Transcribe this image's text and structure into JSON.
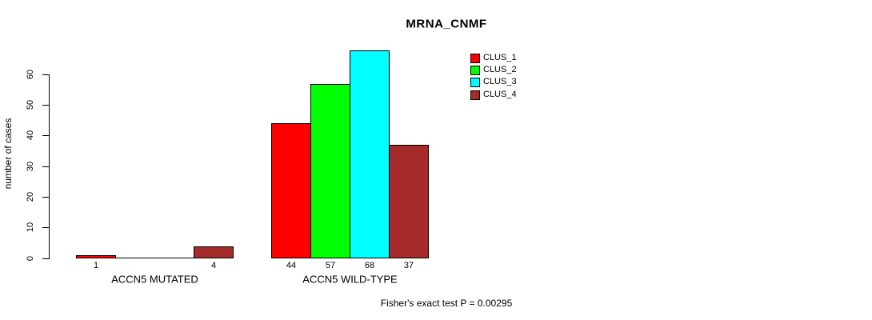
{
  "chart_data": {
    "type": "bar",
    "title": "MRNA_CNMF",
    "xlabel": "",
    "ylabel": "number of cases",
    "ylim": [
      0,
      60
    ],
    "yticks": [
      0,
      10,
      20,
      30,
      40,
      50,
      60
    ],
    "grid": false,
    "legend_position": "top-right",
    "categories": [
      "ACCN5 MUTATED",
      "ACCN5 WILD-TYPE"
    ],
    "series": [
      {
        "name": "CLUS_1",
        "color": "#ff0000",
        "values": [
          1,
          44
        ]
      },
      {
        "name": "CLUS_2",
        "color": "#00ff00",
        "values": [
          0,
          57
        ]
      },
      {
        "name": "CLUS_3",
        "color": "#00ffff",
        "values": [
          0,
          68
        ]
      },
      {
        "name": "CLUS_4",
        "color": "#a52a2a",
        "values": [
          4,
          37
        ]
      }
    ],
    "bar_value_labels_shown": [
      "1",
      "4",
      "44",
      "57",
      "68",
      "37"
    ],
    "show_zero_value_labels": false,
    "annotation": "Fisher's exact test P = 0.00295"
  }
}
